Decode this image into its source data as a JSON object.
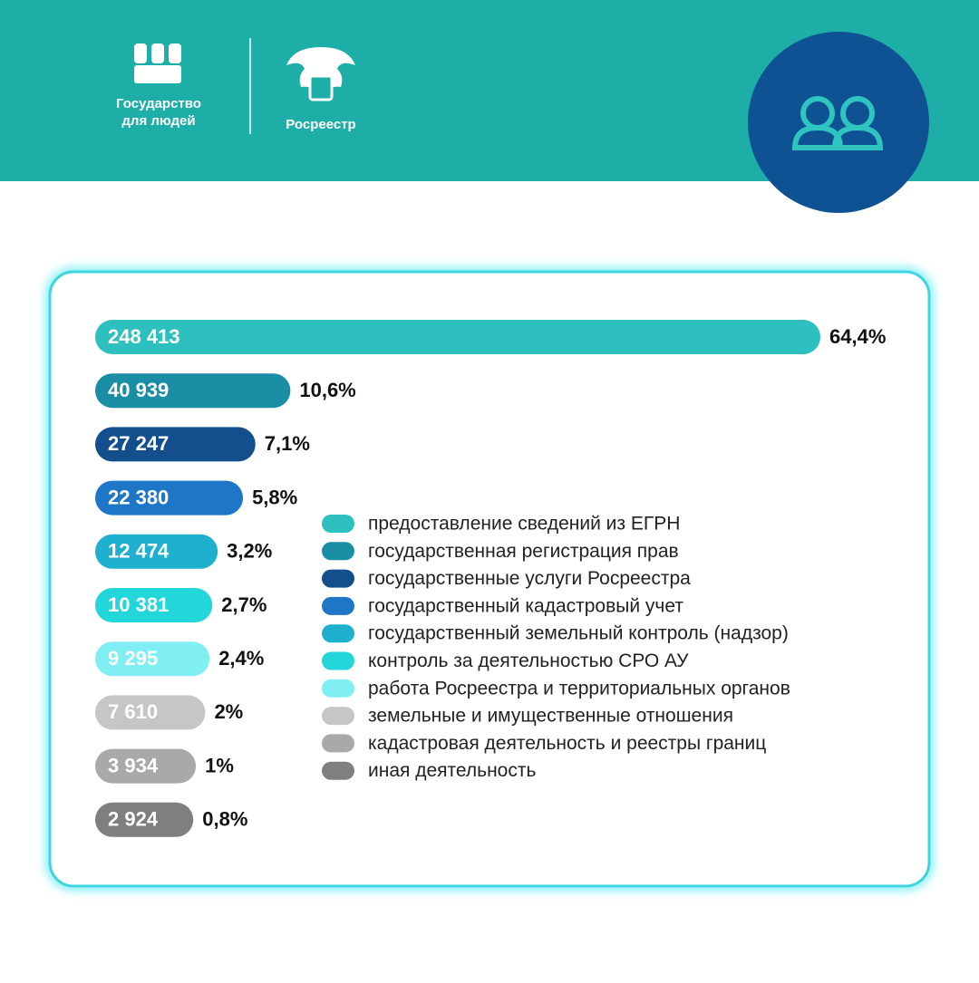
{
  "header": {
    "brand_lines": [
      "Государство",
      "для людей"
    ],
    "agency": "Росреестр"
  },
  "chart_data": {
    "type": "bar",
    "orientation": "horizontal",
    "categories": [
      "предоставление сведений из ЕГРН",
      "государственная регистрация прав",
      "государственные услуги Росреестра",
      "государственный кадастровый учет",
      "государственный земельный контроль (надзор)",
      "контроль за деятельностью СРО АУ",
      "работа Росреестра и территориальных органов",
      "земельные и имущественные отношения",
      "кадастровая деятельность и реестры границ",
      "иная деятельность"
    ],
    "values": [
      248413,
      40939,
      27247,
      22380,
      12474,
      10381,
      9295,
      7610,
      3934,
      2924
    ],
    "value_labels": [
      "248 413",
      "40 939",
      "27 247",
      "22 380",
      "12 474",
      "10 381",
      "9 295",
      "7 610",
      "3 934",
      "2 924"
    ],
    "shares": [
      64.4,
      10.6,
      7.1,
      5.8,
      3.2,
      2.7,
      2.4,
      2,
      1,
      0.8
    ],
    "share_labels": [
      "64,4%",
      "10,6%",
      "7,1%",
      "5,8%",
      "3,2%",
      "2,7%",
      "2,4%",
      "2%",
      "1%",
      "0,8%"
    ],
    "colors": [
      "#2ebfbf",
      "#1a8ea4",
      "#124f8c",
      "#1e76c6",
      "#1fb0cf",
      "#22d6da",
      "#80eff4",
      "#c6c6c6",
      "#a9a9a9",
      "#7f7f7f"
    ],
    "legend": true
  }
}
